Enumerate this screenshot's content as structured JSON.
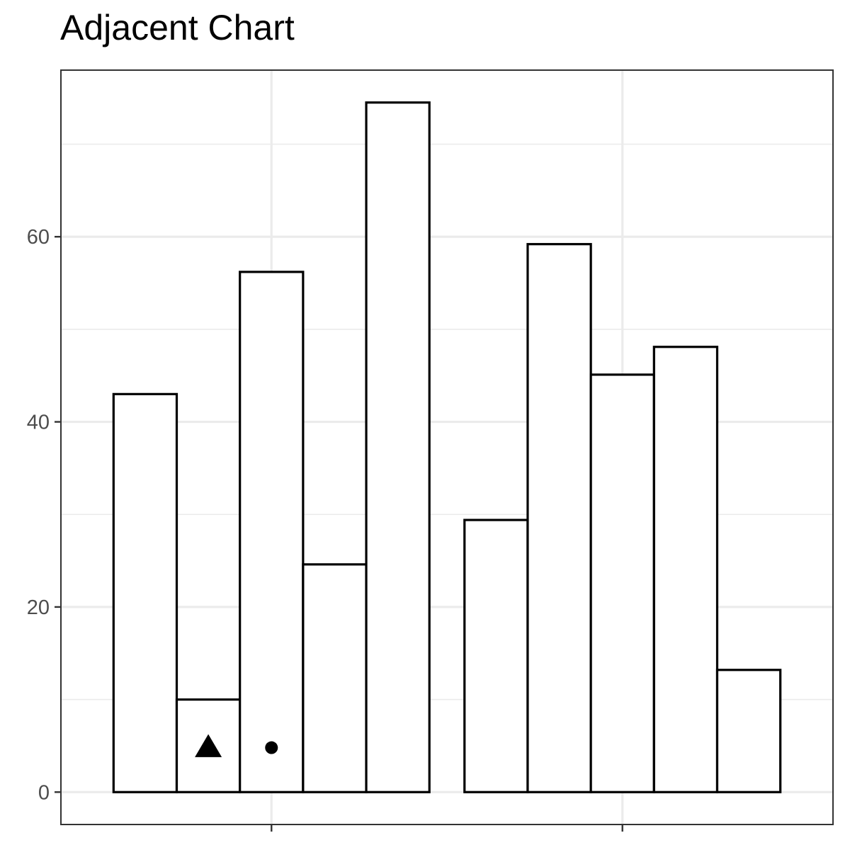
{
  "chart_data": {
    "type": "bar",
    "title": "Adjacent Chart",
    "xlabel": "",
    "ylabel": "",
    "ylim": [
      -3.5,
      78
    ],
    "yticks": [
      0,
      20,
      40,
      60
    ],
    "grid": true,
    "groups": [
      {
        "values": [
          43,
          10,
          56.2,
          24.6,
          74.5
        ]
      },
      {
        "values": [
          29.4,
          59.2,
          45.1,
          48.1,
          13.2
        ]
      }
    ],
    "markers": [
      {
        "shape": "triangle",
        "group": 0,
        "bar": 1,
        "y": 4.8
      },
      {
        "shape": "circle",
        "group": 0,
        "bar": 2,
        "y": 4.8
      }
    ],
    "colors": {
      "bar_fill": "#ffffff",
      "bar_stroke": "#000000",
      "grid": "#ebebeb",
      "panel_border": "#333333",
      "tick_label": "#4d4d4d"
    }
  }
}
